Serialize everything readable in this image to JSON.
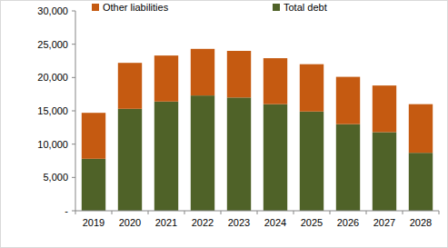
{
  "chart_data": {
    "type": "bar",
    "stacked": true,
    "grid": false,
    "legend": "top",
    "categories": [
      "2019",
      "2020",
      "2021",
      "2022",
      "2023",
      "2024",
      "2025",
      "2026",
      "2027",
      "2028"
    ],
    "series": [
      {
        "name": "Total debt",
        "color": "#4f6228",
        "values": [
          7800,
          15300,
          16400,
          17300,
          17000,
          16000,
          14900,
          13000,
          11800,
          8700
        ]
      },
      {
        "name": "Other liabilities",
        "color": "#c55a11",
        "values": [
          6900,
          6900,
          6900,
          7000,
          7000,
          6900,
          7100,
          7100,
          7000,
          7300
        ]
      }
    ],
    "ylim": [
      0,
      30000
    ],
    "yticks": [
      {
        "value": 0,
        "label": "-"
      },
      {
        "value": 5000,
        "label": "5,000"
      },
      {
        "value": 10000,
        "label": "10,000"
      },
      {
        "value": 15000,
        "label": "15,000"
      },
      {
        "value": 20000,
        "label": "20,000"
      },
      {
        "value": 25000,
        "label": "25,000"
      },
      {
        "value": 30000,
        "label": "30,000"
      }
    ]
  }
}
